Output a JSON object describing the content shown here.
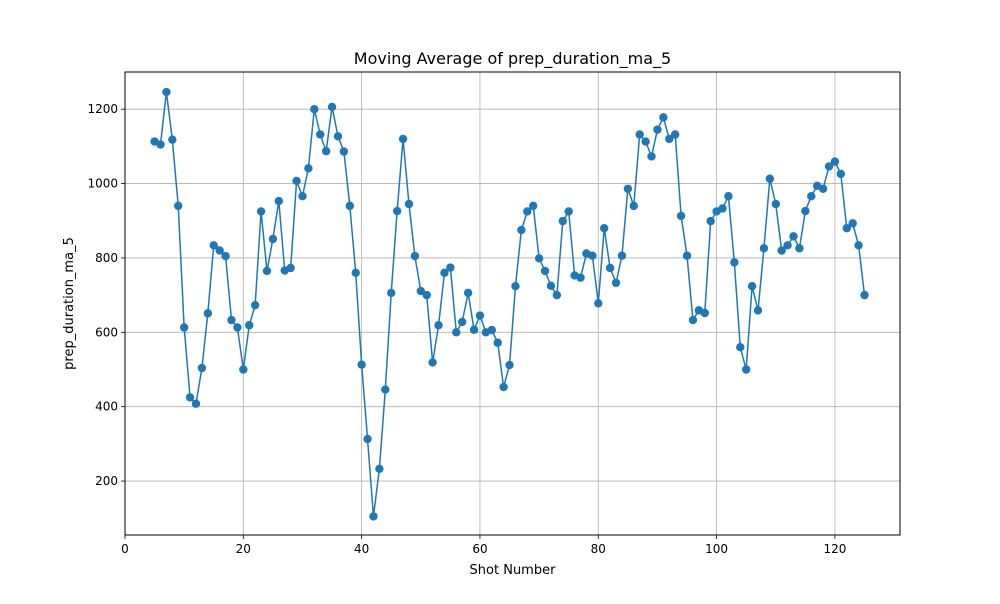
{
  "chart_data": {
    "type": "line",
    "title": "Moving Average of prep_duration_ma_5",
    "xlabel": "Shot Number",
    "ylabel": "prep_duration_ma_5",
    "xlim": [
      0,
      131
    ],
    "ylim": [
      55,
      1300
    ],
    "xticks": [
      0,
      20,
      40,
      60,
      80,
      100,
      120
    ],
    "yticks": [
      200,
      400,
      600,
      800,
      1000,
      1200
    ],
    "grid": true,
    "marker": "circle",
    "series": [
      {
        "color": "#1f77b4",
        "x": [
          5,
          6,
          7,
          8,
          9,
          10,
          11,
          12,
          13,
          14,
          15,
          16,
          17,
          18,
          19,
          20,
          21,
          22,
          23,
          24,
          25,
          26,
          27,
          28,
          29,
          30,
          31,
          32,
          33,
          34,
          35,
          36,
          37,
          38,
          39,
          40,
          41,
          42,
          43,
          44,
          45,
          46,
          47,
          48,
          49,
          50,
          51,
          52,
          53,
          54,
          55,
          56,
          57,
          58,
          59,
          60,
          61,
          62,
          63,
          64,
          65,
          66,
          67,
          68,
          69,
          70,
          71,
          72,
          73,
          74,
          75,
          76,
          77,
          78,
          79,
          80,
          81,
          82,
          83,
          84,
          85,
          86,
          87,
          88,
          89,
          90,
          91,
          92,
          93,
          94,
          95,
          96,
          97,
          98,
          99,
          100,
          101,
          102,
          103,
          104,
          105,
          106,
          107,
          108,
          109,
          110,
          111,
          112,
          113,
          114,
          115,
          116,
          117,
          118,
          119,
          120,
          121,
          122,
          123,
          124,
          125
        ],
        "y": [
          1113,
          1105,
          1246,
          1118,
          940,
          613,
          425,
          408,
          504,
          651,
          834,
          820,
          805,
          633,
          613,
          500,
          619,
          673,
          925,
          765,
          851,
          953,
          766,
          773,
          1007,
          966,
          1041,
          1200,
          1132,
          1087,
          1206,
          1127,
          1086,
          940,
          760,
          513,
          313,
          105,
          233,
          446,
          706,
          926,
          1120,
          945,
          805,
          711,
          700,
          519,
          619,
          760,
          774,
          600,
          628,
          706,
          607,
          645,
          600,
          606,
          572,
          453,
          512,
          724,
          875,
          925,
          940,
          799,
          765,
          725,
          700,
          899,
          925,
          753,
          747,
          812,
          806,
          678,
          880,
          773,
          733,
          806,
          986,
          940,
          1132,
          1113,
          1073,
          1145,
          1178,
          1120,
          1132,
          913,
          806,
          633,
          659,
          652,
          899,
          925,
          933,
          966,
          788,
          560,
          500,
          724,
          659,
          826,
          1013,
          945,
          820,
          834,
          858,
          826,
          926,
          966,
          994,
          986,
          1046,
          1059,
          1026,
          880,
          893,
          834,
          700
        ]
      }
    ]
  }
}
